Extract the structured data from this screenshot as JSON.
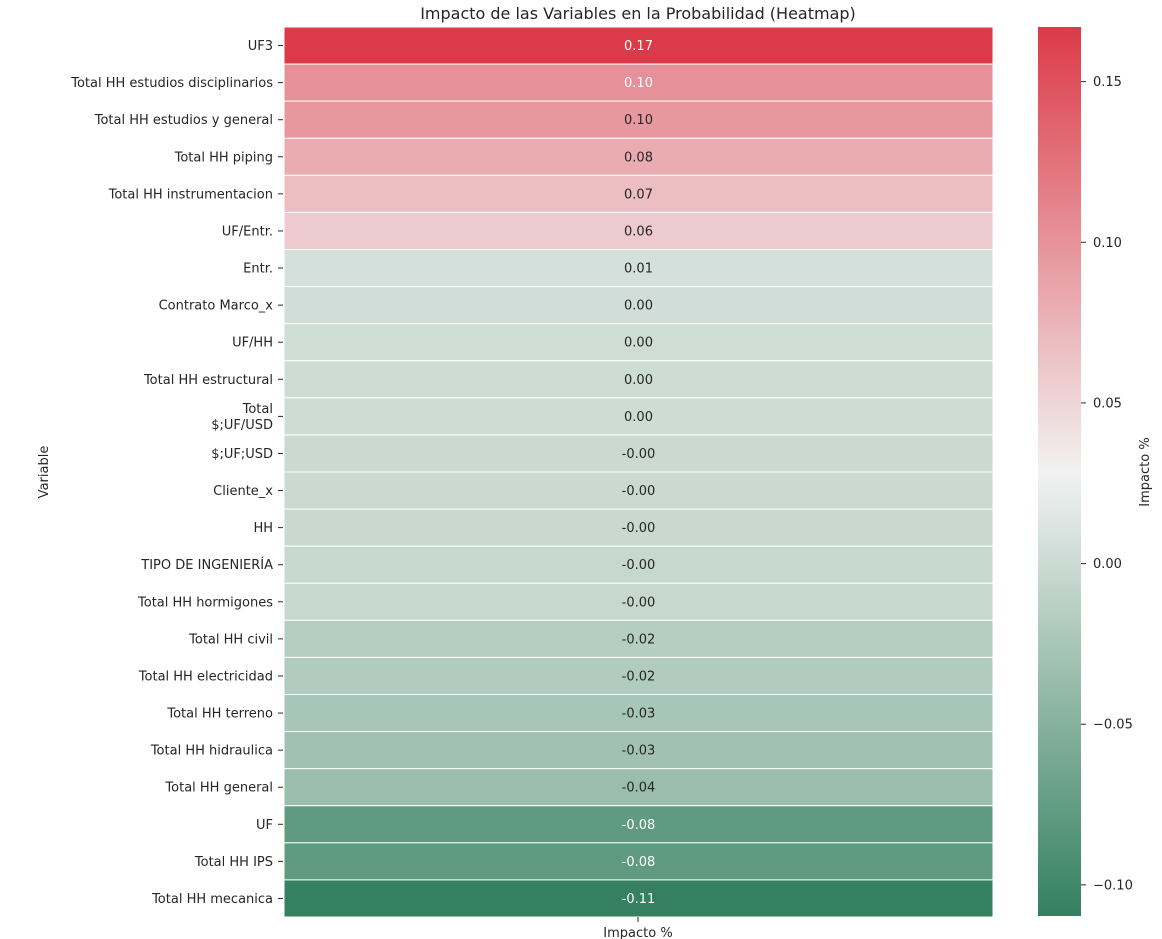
{
  "chart_data": {
    "type": "heatmap",
    "title": "Impacto de las Variables en la Probabilidad (Heatmap)",
    "ylabel": "Variable",
    "xlabel": "Impacto %",
    "columns": [
      "Impacto %"
    ],
    "rows": [
      "UF3",
      "Total HH estudios disciplinarios",
      "Total HH estudios y general",
      "Total HH piping",
      "Total HH instrumentacion",
      "UF/Entr.",
      "Entr.",
      "Contrato Marco_x",
      "UF/HH",
      "Total HH estructural",
      "Total\n$;UF/USD",
      "$;UF;USD",
      "Cliente_x",
      "HH",
      "TIPO DE INGENIERÍA",
      "Total HH hormigones",
      "Total HH civil",
      "Total HH electricidad",
      "Total HH terreno",
      "Total HH hidraulica",
      "Total HH general",
      "UF",
      "Total HH IPS",
      "Total HH mecanica"
    ],
    "values": [
      0.167,
      0.101,
      0.097,
      0.081,
      0.068,
      0.058,
      0.006,
      0.003,
      0.002,
      0.001,
      0.001,
      -0.001,
      -0.001,
      -0.002,
      -0.003,
      -0.004,
      -0.016,
      -0.019,
      -0.026,
      -0.031,
      -0.036,
      -0.078,
      -0.079,
      -0.11
    ],
    "labels": [
      "0.17",
      "0.10",
      "0.10",
      "0.08",
      "0.07",
      "0.06",
      "0.01",
      "0.00",
      "0.00",
      "0.00",
      "0.00",
      "-0.00",
      "-0.00",
      "-0.00",
      "-0.00",
      "-0.00",
      "-0.02",
      "-0.02",
      "-0.03",
      "-0.03",
      "-0.04",
      "-0.08",
      "-0.08",
      "-0.11"
    ],
    "colorbar": {
      "label": "Impacto %",
      "range": [
        -0.11,
        0.167
      ],
      "center": 0.028,
      "ticks": [
        0.15,
        0.1,
        0.05,
        0.0,
        -0.05,
        -0.1
      ],
      "tick_labels": [
        "0.15",
        "0.10",
        "0.05",
        "0.00",
        "−0.05",
        "−0.10"
      ]
    },
    "colors": {
      "positive": "#dc3a48",
      "neutral": "#f2f2f2",
      "negative": "#348060"
    }
  }
}
